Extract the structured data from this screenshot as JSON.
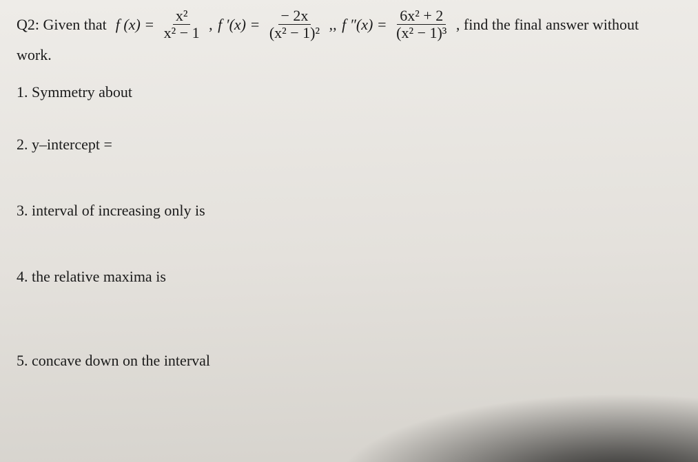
{
  "question": {
    "label": "Q2: Given that  ",
    "f_eq": "f (x) = ",
    "frac1": {
      "num": "x²",
      "den": "x² − 1"
    },
    "sep1": " , ",
    "fp_eq": "f ′(x) = ",
    "frac2": {
      "num": "− 2x",
      "den": "(x² − 1)²"
    },
    "sep2": " ,, ",
    "fpp_eq": "f ″(x) = ",
    "frac3": {
      "num": "6x² + 2",
      "den": "(x² − 1)³"
    },
    "tail": " , find the final answer without"
  },
  "after": "work.",
  "items": {
    "sym": "1.  Symmetry about",
    "yint": "2.  y–intercept =",
    "incr": "3.  interval of increasing only is",
    "max": "4.  the relative maxima is",
    "conc": "5.  concave down on the interval"
  }
}
